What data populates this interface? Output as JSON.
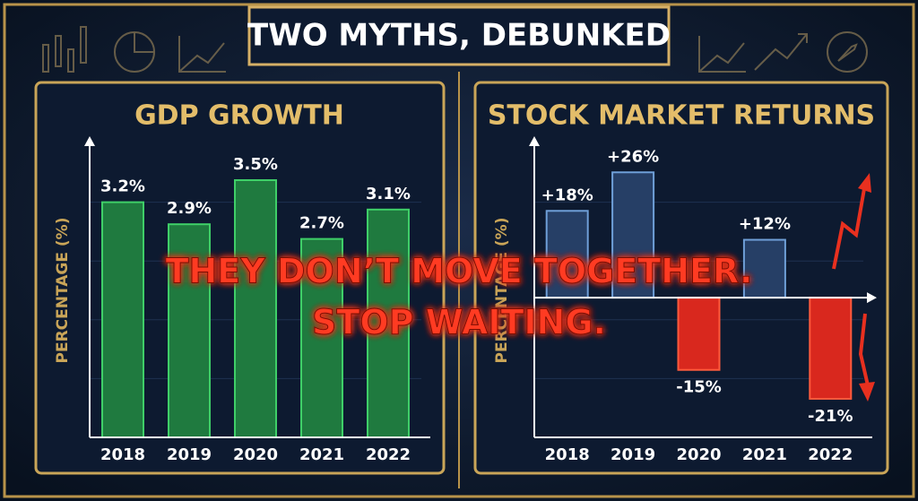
{
  "title": "TWO MYTHS, DEBUNKED",
  "overlay": [
    "THEY DON’T MOVE TOGETHER.",
    "STOP WAITING."
  ],
  "chart_data": [
    {
      "type": "bar",
      "title": "GDP GROWTH",
      "y_label": "PERCENTAGE (%)",
      "categories": [
        "2018",
        "2019",
        "2020",
        "2021",
        "2022"
      ],
      "values": [
        3.2,
        2.9,
        3.5,
        2.7,
        3.1
      ],
      "value_labels": [
        "3.2%",
        "2.9%",
        "3.5%",
        "2.7%",
        "3.1%"
      ],
      "colors": [
        "#1f7a3f",
        "#1f7a3f",
        "#1f7a3f",
        "#1f7a3f",
        "#1f7a3f"
      ],
      "ylim": [
        0,
        4
      ]
    },
    {
      "type": "bar",
      "title": "STOCK MARKET RETURNS",
      "y_label": "PERCENTAGE (%)",
      "categories": [
        "2018",
        "2019",
        "2020",
        "2021",
        "2022"
      ],
      "values": [
        18,
        26,
        -15,
        12,
        -21
      ],
      "value_labels": [
        "+18%",
        "+26%",
        "-15%",
        "+12%",
        "-21%"
      ],
      "colors": [
        "#263f66",
        "#263f66",
        "#d9281e",
        "#263f66",
        "#d9281e"
      ],
      "ylim": [
        -29,
        32
      ]
    }
  ]
}
